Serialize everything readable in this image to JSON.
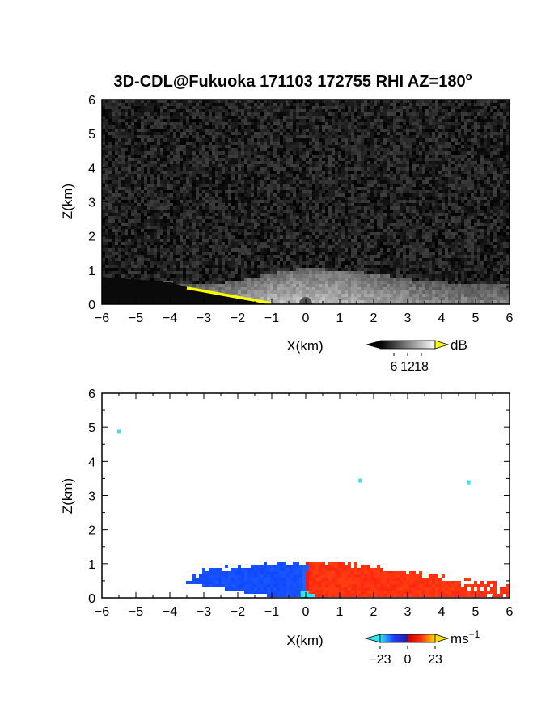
{
  "chart_data": [
    {
      "type": "heatmap",
      "title": "3D-CDL@Fukuoka 171103 172755 RHI AZ=180",
      "title_superscript": "o",
      "xlabel": "X(km)",
      "ylabel": "Z(km)",
      "xlim": [
        -6,
        6
      ],
      "ylim": [
        0,
        6
      ],
      "xticks": [
        "−6",
        "−5",
        "−4",
        "−3",
        "−2",
        "−1",
        "0",
        "1",
        "2",
        "3",
        "4",
        "5",
        "6"
      ],
      "yticks": [
        "0",
        "1",
        "2",
        "3",
        "4",
        "5",
        "6"
      ],
      "quantity": "backscatter intensity",
      "colormap": "grayscale",
      "colorbar": {
        "unit": "dB",
        "ticks": [
          "6",
          "12",
          "18"
        ],
        "range": [
          0,
          24
        ]
      },
      "background_level_db": 3,
      "echo_top_profile": {
        "x": [
          -4,
          -3,
          -2,
          -1,
          -0.5,
          0,
          1,
          2,
          3,
          4,
          5,
          6
        ],
        "z": [
          0.65,
          0.55,
          0.7,
          0.9,
          1.0,
          1.05,
          1.0,
          0.9,
          0.75,
          0.65,
          0.6,
          0.6
        ]
      },
      "peak_level_db": 18,
      "blocked_region_color": "#ffff00",
      "blocked_region": {
        "x": [
          -3.5,
          -1
        ],
        "z": [
          0.5,
          0
        ]
      }
    },
    {
      "type": "heatmap",
      "xlabel": "X(km)",
      "ylabel": "Z(km)",
      "xlim": [
        -6,
        6
      ],
      "ylim": [
        0,
        6
      ],
      "xticks": [
        "−6",
        "−5",
        "−4",
        "−3",
        "−2",
        "−1",
        "0",
        "1",
        "2",
        "3",
        "4",
        "5",
        "6"
      ],
      "yticks": [
        "0",
        "1",
        "2",
        "3",
        "4",
        "5",
        "6"
      ],
      "quantity": "radial velocity",
      "colormap": "cyan-blue-red-yellow",
      "colorbar": {
        "unit": "ms",
        "unit_superscript": "−1",
        "ticks": [
          "−23",
          "0",
          "23"
        ],
        "range": [
          -23,
          23
        ]
      },
      "approaching_side": {
        "x": [
          -4,
          0
        ],
        "z_top": 1.1,
        "velocity": -12,
        "color": "#1f3cff"
      },
      "receding_side": {
        "x": [
          0,
          6
        ],
        "z_top": 1.1,
        "velocity": 12,
        "color": "#ff2a10"
      },
      "near_zero_color": "#33e6ee",
      "isolated_returns": [
        {
          "x": -5.5,
          "z": 4.9
        },
        {
          "x": 1.6,
          "z": 3.45
        },
        {
          "x": 4.8,
          "z": 3.4
        }
      ]
    }
  ]
}
